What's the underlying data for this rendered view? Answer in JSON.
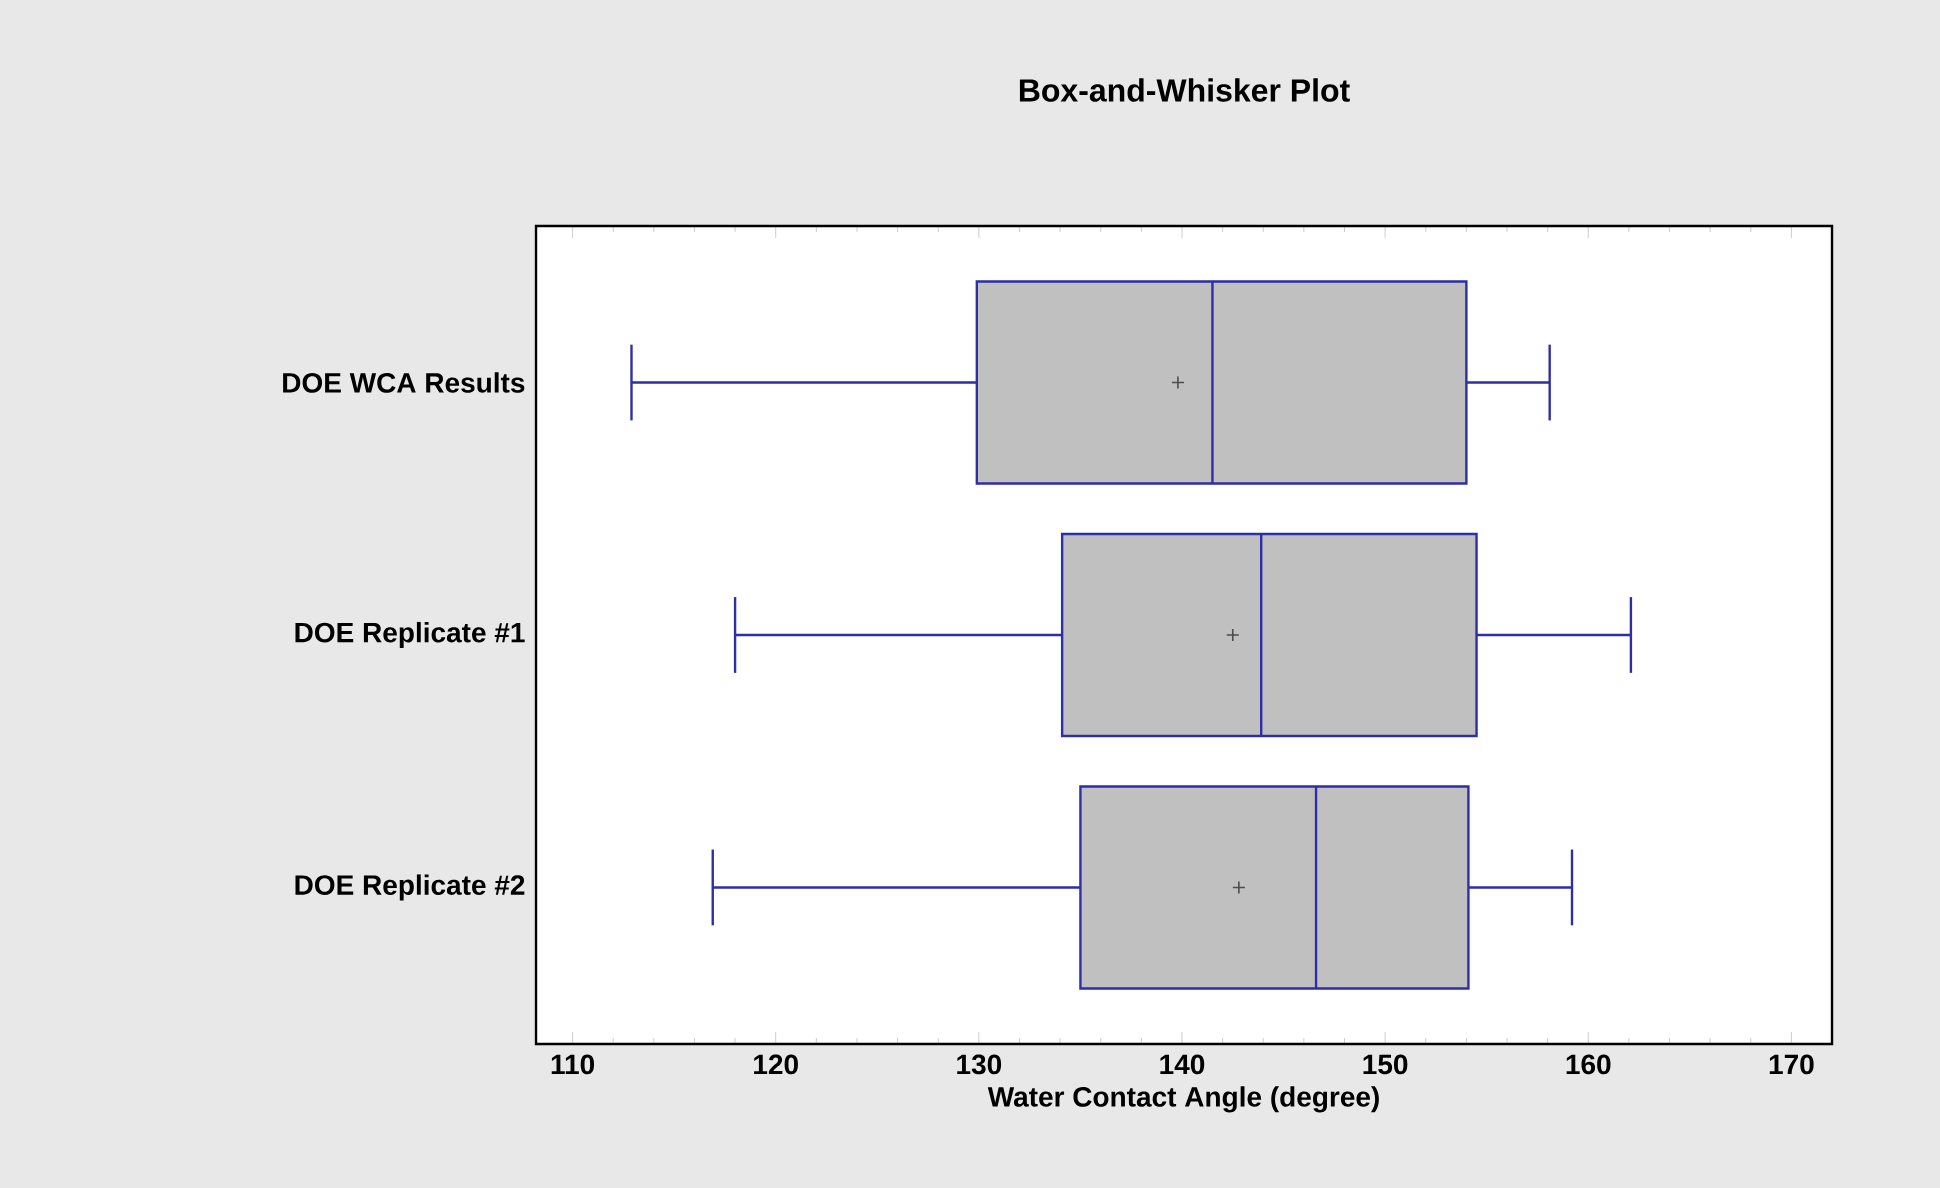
{
  "chart_data": {
    "type": "box",
    "title": "Box-and-Whisker Plot",
    "xlabel": "Water Contact Angle (degree)",
    "orientation": "horizontal",
    "categories": [
      "DOE WCA Results",
      "DOE Replicate #1",
      "DOE Replicate #2"
    ],
    "boxes": [
      {
        "low": 112.9,
        "q1": 129.9,
        "median": 141.5,
        "q3": 154.0,
        "high": 158.1,
        "mean": 139.8
      },
      {
        "low": 118.0,
        "q1": 134.1,
        "median": 143.9,
        "q3": 154.5,
        "high": 162.1,
        "mean": 142.5
      },
      {
        "low": 116.9,
        "q1": 135.0,
        "median": 146.6,
        "q3": 154.1,
        "high": 159.2,
        "mean": 142.8
      }
    ],
    "color": "#c0c0c0",
    "xlim": [
      108.2,
      172
    ],
    "xticks": [
      110,
      120,
      130,
      140,
      150,
      160,
      170
    ],
    "grid": false,
    "marker": "cross"
  }
}
